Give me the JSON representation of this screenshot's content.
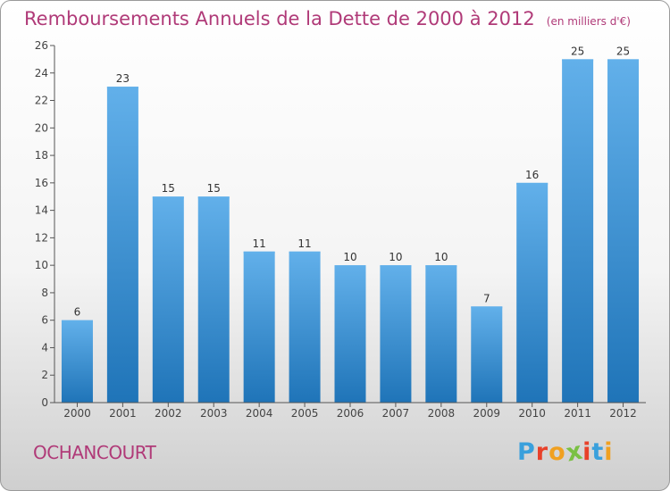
{
  "header": {
    "title": "Remboursements Annuels de la Dette de 2000 à 2012",
    "unit": "(en milliers d'€)"
  },
  "footer": {
    "commune": "OCHANCOURT",
    "logo_text": "Proxiti",
    "logo_colors": [
      "#3aa0dc",
      "#e8412a",
      "#f0a020",
      "#7ac043",
      "#e8412a",
      "#3aa0dc",
      "#f0a020"
    ]
  },
  "colors": {
    "bar_light": "#62b0ea",
    "bar_dark": "#1f74b8",
    "axis": "#555555",
    "grid": "#dddddd",
    "title": "#b03a78"
  },
  "chart_data": {
    "type": "bar",
    "categories": [
      "2000",
      "2001",
      "2002",
      "2003",
      "2004",
      "2005",
      "2006",
      "2007",
      "2008",
      "2009",
      "2010",
      "2011",
      "2012"
    ],
    "values": [
      6,
      23,
      15,
      15,
      11,
      11,
      10,
      10,
      10,
      7,
      16,
      25,
      25
    ],
    "ylim": [
      0,
      26
    ],
    "yticks": [
      0,
      2,
      4,
      6,
      8,
      10,
      12,
      14,
      16,
      18,
      20,
      22,
      24,
      26
    ],
    "data_labels": true,
    "grid": false
  }
}
